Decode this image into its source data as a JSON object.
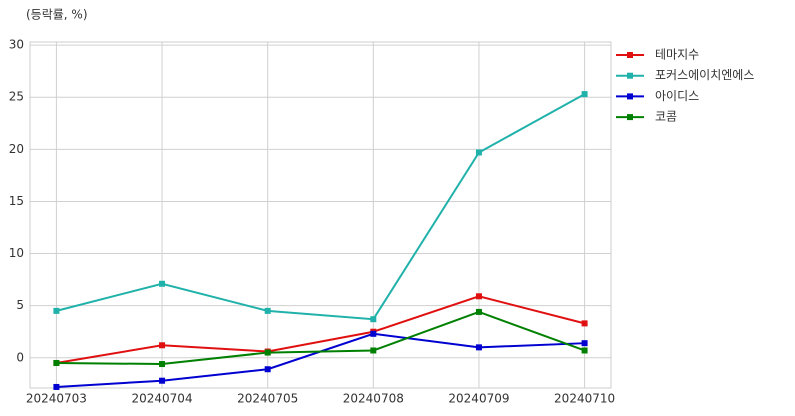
{
  "chart_data": {
    "type": "line",
    "annotation": "(등락률, %)",
    "categories": [
      "20240703",
      "20240704",
      "20240705",
      "20240708",
      "20240709",
      "20240710"
    ],
    "series": [
      {
        "name": "테마지수",
        "color": "#e01010",
        "values": [
          -0.5,
          1.2,
          0.6,
          2.5,
          5.9,
          3.3
        ]
      },
      {
        "name": "포커스에이치엔에스",
        "color": "#20b2aa",
        "values": [
          4.5,
          7.1,
          4.5,
          3.7,
          19.7,
          25.3
        ]
      },
      {
        "name": "아이디스",
        "color": "#0000d0",
        "values": [
          -2.8,
          -2.2,
          -1.1,
          2.3,
          1.0,
          1.4
        ]
      },
      {
        "name": "코콤",
        "color": "#008000",
        "values": [
          -0.5,
          -0.6,
          0.5,
          0.7,
          4.4,
          0.7
        ]
      }
    ],
    "ylim": [
      -2.9,
      30.3
    ],
    "yticks": [
      0,
      5,
      10,
      15,
      20,
      25,
      30
    ],
    "grid": true,
    "legend": "outside-right"
  }
}
